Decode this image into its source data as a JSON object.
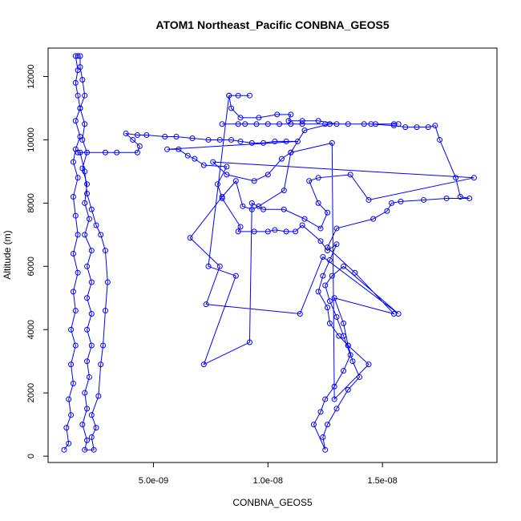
{
  "chart_data": {
    "type": "scatter",
    "title": "ATOM1 Northeast_Pacific CONBNA_GEOS5",
    "xlabel": "CONBNA_GEOS5",
    "ylabel": "Altitude (m)",
    "xlim": [
      4e-10,
      2e-08
    ],
    "ylim": [
      -200,
      12900
    ],
    "x_ticks": [
      {
        "value": 5e-09,
        "label": "5.0e-09"
      },
      {
        "value": 1e-08,
        "label": "1.0e-08"
      },
      {
        "value": 1.5e-08,
        "label": "1.5e-08"
      }
    ],
    "y_ticks": [
      {
        "value": 0,
        "label": "0"
      },
      {
        "value": 2000,
        "label": "2000"
      },
      {
        "value": 4000,
        "label": "4000"
      },
      {
        "value": 6000,
        "label": "6000"
      },
      {
        "value": 8000,
        "label": "8000"
      },
      {
        "value": 10000,
        "label": "10000"
      },
      {
        "value": 12000,
        "label": "12000"
      }
    ],
    "grid": false,
    "series": [
      {
        "color": "#0000ff",
        "marker": "open-circle",
        "connected": true,
        "points": [
          [
            1.1e-09,
            200
          ],
          [
            1.3e-09,
            400
          ],
          [
            1.2e-09,
            900
          ],
          [
            1.4e-09,
            1300
          ],
          [
            1.3e-09,
            1800
          ],
          [
            1.5e-09,
            2300
          ],
          [
            1.4e-09,
            2900
          ],
          [
            1.6e-09,
            3500
          ],
          [
            1.4e-09,
            4000
          ],
          [
            1.6e-09,
            4600
          ],
          [
            1.5e-09,
            5200
          ],
          [
            1.7e-09,
            5800
          ],
          [
            1.5e-09,
            6400
          ],
          [
            1.7e-09,
            7000
          ],
          [
            1.6e-09,
            7600
          ],
          [
            1.5e-09,
            8200
          ],
          [
            1.7e-09,
            8800
          ],
          [
            1.5e-09,
            9300
          ],
          [
            1.6e-09,
            9700
          ],
          [
            1.8e-09,
            10100
          ],
          [
            1.6e-09,
            10600
          ],
          [
            1.8e-09,
            11000
          ],
          [
            1.7e-09,
            11400
          ],
          [
            1.6e-09,
            11800
          ],
          [
            1.7e-09,
            12200
          ],
          [
            1.6e-09,
            12650
          ],
          [
            1.7e-09,
            12650
          ],
          [
            1.8e-09,
            12650
          ],
          [
            1.8e-09,
            12300
          ],
          [
            1.9e-09,
            11900
          ],
          [
            2e-09,
            11400
          ],
          [
            1.8e-09,
            11000
          ],
          [
            2e-09,
            10500
          ],
          [
            1.9e-09,
            10000
          ],
          [
            2.1e-09,
            9600
          ],
          [
            1.9e-09,
            9100
          ],
          [
            2.1e-09,
            8600
          ],
          [
            2e-09,
            8000
          ],
          [
            2.2e-09,
            7500
          ],
          [
            2e-09,
            7000
          ],
          [
            2.3e-09,
            6500
          ],
          [
            2.1e-09,
            6000
          ],
          [
            2.3e-09,
            5500
          ],
          [
            2.1e-09,
            5000
          ],
          [
            2.3e-09,
            4500
          ],
          [
            2.1e-09,
            4000
          ],
          [
            2.3e-09,
            3500
          ],
          [
            2.1e-09,
            3000
          ],
          [
            2.2e-09,
            2500
          ],
          [
            2e-09,
            2000
          ],
          [
            2.1e-09,
            1500
          ],
          [
            1.9e-09,
            1000
          ],
          [
            2.1e-09,
            500
          ],
          [
            2e-09,
            200
          ],
          [
            2.4e-09,
            200
          ],
          [
            2.3e-09,
            600
          ],
          [
            2.5e-09,
            900
          ],
          [
            2.3e-09,
            1300
          ],
          [
            2.6e-09,
            1900
          ],
          [
            2.7e-09,
            2900
          ],
          [
            2.8e-09,
            3500
          ],
          [
            2.9e-09,
            4600
          ],
          [
            3e-09,
            5500
          ],
          [
            2.9e-09,
            6500
          ],
          [
            2.7e-09,
            7000
          ],
          [
            2.5e-09,
            7300
          ],
          [
            2.3e-09,
            7800
          ],
          [
            2.1e-09,
            8300
          ],
          [
            2e-09,
            9000
          ],
          [
            1.8e-09,
            9600
          ],
          [
            1.7e-09,
            9600
          ],
          [
            2.9e-09,
            9600
          ],
          [
            3.4e-09,
            9600
          ],
          [
            4.3e-09,
            9600
          ],
          [
            4.4e-09,
            9800
          ],
          [
            4.1e-09,
            10000
          ],
          [
            3.8e-09,
            10200
          ],
          [
            4.3e-09,
            10150
          ],
          [
            4.7e-09,
            10150
          ],
          [
            5.5e-09,
            10100
          ],
          [
            6e-09,
            10100
          ],
          [
            6.7e-09,
            10050
          ],
          [
            7.4e-09,
            10000
          ],
          [
            7.9e-09,
            10000
          ],
          [
            8.4e-09,
            10000
          ],
          [
            8.8e-09,
            9950
          ],
          [
            9.3e-09,
            9900
          ],
          [
            9.8e-09,
            9900
          ],
          [
            1.03e-08,
            9950
          ],
          [
            1.08e-08,
            9950
          ],
          [
            1.13e-08,
            9950
          ],
          [
            5.6e-09,
            9700
          ],
          [
            6.1e-09,
            9700
          ],
          [
            6.5e-09,
            9500
          ],
          [
            6.8e-09,
            9400
          ],
          [
            7.2e-09,
            9200
          ],
          [
            8.2e-09,
            9150
          ],
          [
            7.8e-09,
            8600
          ],
          [
            8e-09,
            8150
          ],
          [
            8.8e-09,
            7250
          ],
          [
            8.7e-09,
            7100
          ],
          [
            9.4e-09,
            7100
          ],
          [
            1e-08,
            7100
          ],
          [
            1.03e-08,
            7150
          ],
          [
            1.08e-08,
            7100
          ],
          [
            1.12e-08,
            7100
          ],
          [
            1.15e-08,
            7300
          ],
          [
            1.23e-08,
            6800
          ],
          [
            1.26e-08,
            6500
          ],
          [
            1.3e-08,
            6700
          ],
          [
            1.27e-08,
            6200
          ],
          [
            1.24e-08,
            5700
          ],
          [
            1.22e-08,
            5200
          ],
          [
            1.26e-08,
            4700
          ],
          [
            1.27e-08,
            4200
          ],
          [
            1.31e-08,
            3800
          ],
          [
            1.35e-08,
            3500
          ],
          [
            1.37e-08,
            3000
          ],
          [
            1.4e-08,
            2500
          ],
          [
            1.35e-08,
            2100
          ],
          [
            1.3e-08,
            1500
          ],
          [
            1.26e-08,
            1000
          ],
          [
            1.24e-08,
            600
          ],
          [
            1.25e-08,
            200
          ],
          [
            1.2e-08,
            1000
          ],
          [
            1.23e-08,
            1400
          ],
          [
            1.25e-08,
            1800
          ],
          [
            1.29e-08,
            2200
          ],
          [
            1.33e-08,
            2700
          ],
          [
            1.36e-08,
            3200
          ],
          [
            1.33e-08,
            3800
          ],
          [
            1.3e-08,
            4400
          ],
          [
            1.27e-08,
            4900
          ],
          [
            1.25e-08,
            5400
          ],
          [
            1.28e-08,
            5700
          ],
          [
            1.33e-08,
            6000
          ],
          [
            1.57e-08,
            4500
          ],
          [
            1.24e-08,
            6300
          ],
          [
            1.14e-08,
            4500
          ],
          [
            7.3e-09,
            4800
          ],
          [
            7.9e-09,
            6000
          ],
          [
            6.6e-09,
            6900
          ],
          [
            8e-09,
            8200
          ],
          [
            8.6e-09,
            8700
          ],
          [
            8.9e-09,
            7900
          ],
          [
            9.3e-09,
            7800
          ],
          [
            9.6e-09,
            7900
          ],
          [
            1.07e-08,
            8400
          ],
          [
            1.1e-08,
            9600
          ],
          [
            1.16e-08,
            10300
          ],
          [
            1.27e-08,
            10500
          ],
          [
            8e-09,
            10500
          ],
          [
            8.7e-09,
            10500
          ],
          [
            9e-09,
            10500
          ],
          [
            9.5e-09,
            10500
          ],
          [
            1e-08,
            10500
          ],
          [
            1.05e-08,
            10500
          ],
          [
            1.1e-08,
            10500
          ],
          [
            1.15e-08,
            10500
          ],
          [
            1.25e-08,
            10500
          ],
          [
            1.35e-08,
            10500
          ],
          [
            1.45e-08,
            10500
          ],
          [
            1.55e-08,
            10450
          ],
          [
            1.6e-08,
            10400
          ],
          [
            1.65e-08,
            10400
          ],
          [
            1.7e-08,
            10400
          ],
          [
            1.73e-08,
            10450
          ],
          [
            1.75e-08,
            10000
          ],
          [
            1.82e-08,
            8800
          ],
          [
            1.84e-08,
            8200
          ],
          [
            1.88e-08,
            8150
          ],
          [
            1.78e-08,
            8150
          ],
          [
            1.68e-08,
            8100
          ],
          [
            1.58e-08,
            8050
          ],
          [
            1.54e-08,
            8000
          ],
          [
            1.52e-08,
            7750
          ],
          [
            1.46e-08,
            7500
          ],
          [
            1.3e-08,
            7200
          ],
          [
            1.26e-08,
            6600
          ],
          [
            1.38e-08,
            5800
          ],
          [
            1.55e-08,
            4500
          ],
          [
            1.29e-08,
            5000
          ],
          [
            1.33e-08,
            4200
          ],
          [
            1.35e-08,
            3500
          ],
          [
            1.44e-08,
            2900
          ],
          [
            1.29e-08,
            1800
          ],
          [
            1.28e-08,
            9900
          ],
          [
            1.1e-08,
            9600
          ],
          [
            1.06e-08,
            9400
          ],
          [
            1e-08,
            8900
          ],
          [
            9.4e-09,
            8700
          ],
          [
            8.2e-09,
            8900
          ],
          [
            7.6e-09,
            9300
          ],
          [
            1.9e-08,
            8800
          ],
          [
            1.44e-08,
            8100
          ],
          [
            1.36e-08,
            8900
          ],
          [
            1.22e-08,
            8800
          ],
          [
            1.18e-08,
            8700
          ],
          [
            1.22e-08,
            8000
          ],
          [
            1.26e-08,
            7700
          ],
          [
            1.23e-08,
            7200
          ],
          [
            1.16e-08,
            7500
          ],
          [
            1.07e-08,
            7800
          ],
          [
            9.8e-09,
            7800
          ],
          [
            9.3e-09,
            8000
          ],
          [
            9.2e-09,
            3600
          ],
          [
            7.2e-09,
            2900
          ],
          [
            8.6e-09,
            5700
          ],
          [
            7.4e-09,
            6000
          ],
          [
            8.3e-09,
            11400
          ],
          [
            8.7e-09,
            11400
          ],
          [
            9.2e-09,
            11400
          ],
          [
            8.3e-09,
            11400
          ],
          [
            8.4e-09,
            11000
          ],
          [
            8.8e-09,
            10700
          ],
          [
            9.6e-09,
            10700
          ],
          [
            1.04e-08,
            10800
          ],
          [
            1.1e-08,
            10800
          ],
          [
            1.09e-08,
            10600
          ],
          [
            1.15e-08,
            10600
          ],
          [
            1.22e-08,
            10600
          ],
          [
            1.3e-08,
            10500
          ],
          [
            1.42e-08,
            10500
          ],
          [
            1.47e-08,
            10500
          ],
          [
            1.55e-08,
            10500
          ],
          [
            1.57e-08,
            10500
          ]
        ]
      }
    ]
  }
}
